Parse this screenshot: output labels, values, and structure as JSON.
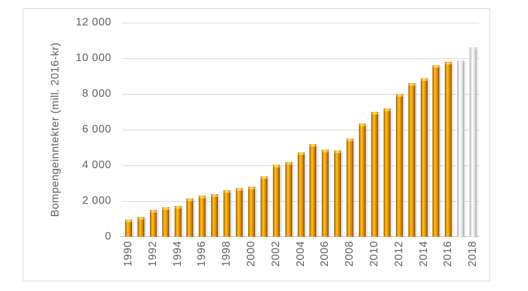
{
  "figure": {
    "background_color": "#ffffff",
    "frame_border_color": "#d9d9d9"
  },
  "chart_data": {
    "type": "bar",
    "title": "",
    "xlabel": "",
    "ylabel": "Bompengeinntekter (mill. 2016-kr)",
    "ylim": [
      0,
      12000
    ],
    "grid": true,
    "legend": "none",
    "categories": [
      1990,
      1991,
      1992,
      1993,
      1994,
      1995,
      1996,
      1997,
      1998,
      1999,
      2000,
      2001,
      2002,
      2003,
      2004,
      2005,
      2006,
      2007,
      2008,
      2009,
      2010,
      2011,
      2012,
      2013,
      2014,
      2015,
      2016,
      2017,
      2018
    ],
    "values": [
      950,
      1100,
      1500,
      1650,
      1750,
      2150,
      2300,
      2400,
      2600,
      2750,
      2800,
      3400,
      4050,
      4200,
      4750,
      5200,
      4900,
      4850,
      5500,
      6350,
      7000,
      7200,
      8000,
      8600,
      8900,
      9600,
      9800,
      9900,
      10600
    ],
    "bar_status": [
      "actual",
      "actual",
      "actual",
      "actual",
      "actual",
      "actual",
      "actual",
      "actual",
      "actual",
      "actual",
      "actual",
      "actual",
      "actual",
      "actual",
      "actual",
      "actual",
      "actual",
      "actual",
      "actual",
      "actual",
      "actual",
      "actual",
      "actual",
      "actual",
      "actual",
      "actual",
      "actual",
      "provisional",
      "provisional"
    ],
    "yticks": [
      {
        "value": 0,
        "label": "0"
      },
      {
        "value": 2000,
        "label": "2 000"
      },
      {
        "value": 4000,
        "label": "4 000"
      },
      {
        "value": 6000,
        "label": "6 000"
      },
      {
        "value": 8000,
        "label": "8 000"
      },
      {
        "value": 10000,
        "label": "10 000"
      },
      {
        "value": 12000,
        "label": "12 000"
      }
    ],
    "xtick_labels": [
      "1990",
      "1992",
      "1994",
      "1996",
      "1998",
      "2000",
      "2002",
      "2004",
      "2006",
      "2008",
      "2010",
      "2012",
      "2014",
      "2016",
      "2018"
    ],
    "colors": {
      "actual_bar": "#e8960a",
      "provisional_bar": "#d9d9d9",
      "text": "#5f5f5f",
      "gridline": "#d9d9d9",
      "axis_line": "#c3c3c3"
    }
  }
}
